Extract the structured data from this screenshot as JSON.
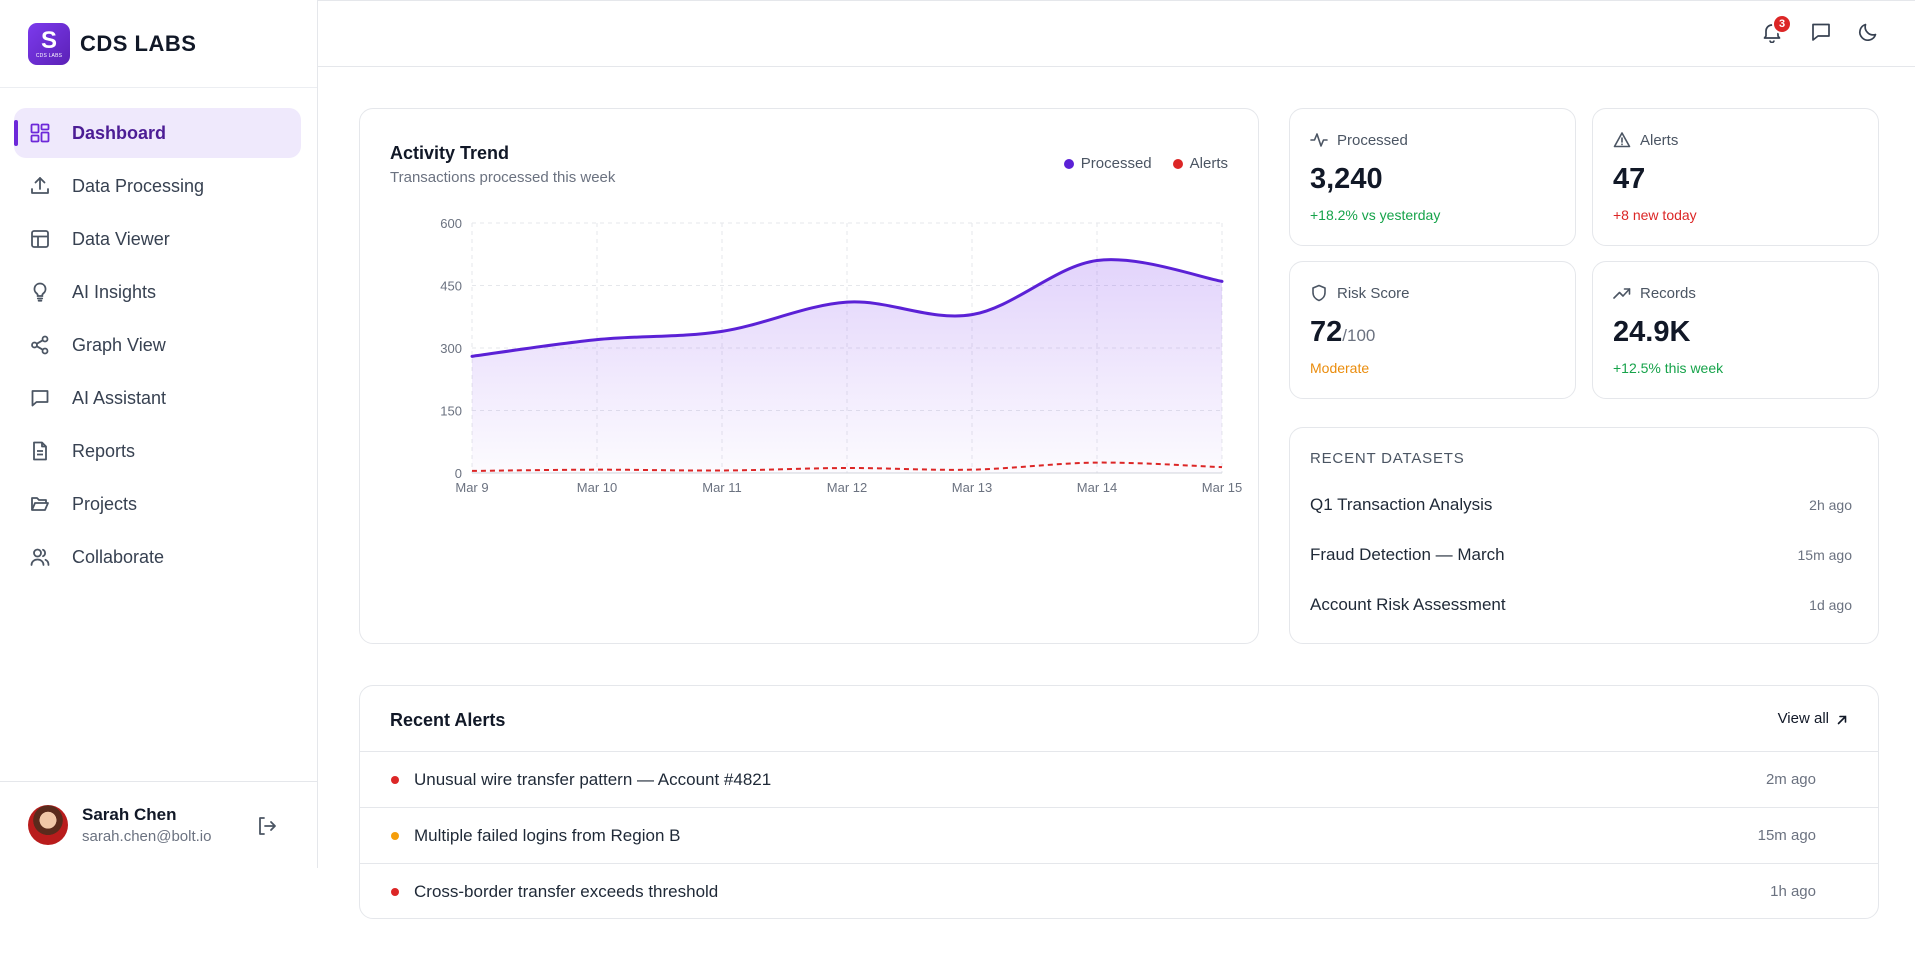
{
  "brand": {
    "logo_letter": "S",
    "logo_sub": "CDS LABS",
    "name": "CDS LABS"
  },
  "nav": [
    {
      "label": "Dashboard",
      "icon": "dashboard-icon",
      "active": true
    },
    {
      "label": "Data Processing",
      "icon": "upload-icon",
      "active": false
    },
    {
      "label": "Data Viewer",
      "icon": "table-icon",
      "active": false
    },
    {
      "label": "AI Insights",
      "icon": "lightbulb-icon",
      "active": false
    },
    {
      "label": "Graph View",
      "icon": "share-nodes-icon",
      "active": false
    },
    {
      "label": "AI Assistant",
      "icon": "chat-icon",
      "active": false
    },
    {
      "label": "Reports",
      "icon": "document-icon",
      "active": false
    },
    {
      "label": "Projects",
      "icon": "folder-open-icon",
      "active": false
    },
    {
      "label": "Collaborate",
      "icon": "users-icon",
      "active": false
    }
  ],
  "user": {
    "name": "Sarah Chen",
    "email": "sarah.chen@bolt.io"
  },
  "topbar": {
    "notification_count": "3"
  },
  "chart": {
    "title": "Activity Trend",
    "subtitle": "Transactions processed this week"
  },
  "chart_data": {
    "type": "area",
    "x": [
      "Mar 9",
      "Mar 10",
      "Mar 11",
      "Mar 12",
      "Mar 13",
      "Mar 14",
      "Mar 15"
    ],
    "series": [
      {
        "name": "Processed",
        "values": [
          280,
          320,
          340,
          410,
          380,
          510,
          460
        ],
        "color": "#5b21d6",
        "style": "solid-area"
      },
      {
        "name": "Alerts",
        "values": [
          5,
          8,
          6,
          12,
          8,
          25,
          14
        ],
        "color": "#dc2626",
        "style": "dashed"
      }
    ],
    "yticks": [
      0,
      150,
      300,
      450,
      600
    ],
    "ylim": [
      0,
      600
    ],
    "grid": true,
    "legend": "top-right"
  },
  "stats": [
    {
      "label": "Processed",
      "icon": "activity-icon",
      "value": "3,240",
      "suffix": "",
      "note": "+18.2% vs yesterday",
      "note_color": "#16a34a"
    },
    {
      "label": "Alerts",
      "icon": "warning-icon",
      "value": "47",
      "suffix": "",
      "note": "+8 new today",
      "note_color": "#dc2626"
    },
    {
      "label": "Risk Score",
      "icon": "shield-icon",
      "value": "72",
      "suffix": "/100",
      "note": "Moderate",
      "note_color": "#ea8c0c"
    },
    {
      "label": "Records",
      "icon": "trending-up-icon",
      "value": "24.9K",
      "suffix": "",
      "note": "+12.5% this week",
      "note_color": "#16a34a"
    }
  ],
  "datasets": {
    "title": "RECENT DATASETS",
    "items": [
      {
        "name": "Q1 Transaction Analysis",
        "time": "2h ago"
      },
      {
        "name": "Fraud Detection — March",
        "time": "15m ago"
      },
      {
        "name": "Account Risk Assessment",
        "time": "1d ago"
      }
    ]
  },
  "alerts": {
    "title": "Recent Alerts",
    "view_all": "View all",
    "items": [
      {
        "text": "Unusual wire transfer pattern — Account #4821",
        "time": "2m ago",
        "severity_color": "#dc2626"
      },
      {
        "text": "Multiple failed logins from Region B",
        "time": "15m ago",
        "severity_color": "#f59e0b"
      },
      {
        "text": "Cross-border transfer exceeds threshold",
        "time": "1h ago",
        "severity_color": "#dc2626"
      }
    ]
  }
}
